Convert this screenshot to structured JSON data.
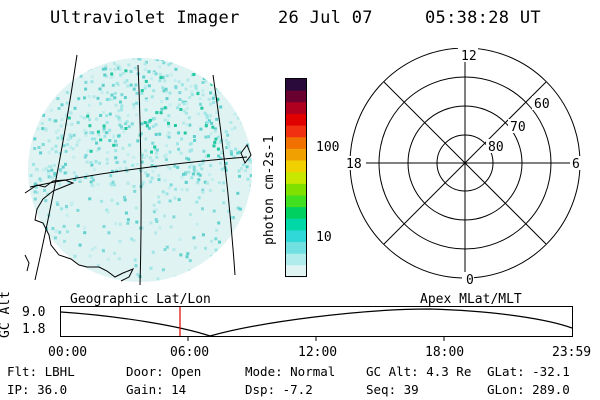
{
  "header": {
    "title": "Ultraviolet Imager",
    "date": "26 Jul 07",
    "time": "05:38:28 UT"
  },
  "colorbar": {
    "unit_label": "photon cm-2s-1",
    "ticks": [
      "100",
      "10"
    ],
    "colors": [
      "#2a0a3a",
      "#6a0030",
      "#b00020",
      "#e00000",
      "#f03010",
      "#f07000",
      "#f0a000",
      "#f0d000",
      "#c8e800",
      "#80e000",
      "#40e020",
      "#00d060",
      "#00d8a8",
      "#30d8d8",
      "#70e0e0",
      "#b0ecec",
      "#e0f4f4"
    ]
  },
  "polar_plot": {
    "labels": {
      "top": "12",
      "bottom": "0",
      "left": "18",
      "right": "6",
      "ring1": "60",
      "ring2": "70",
      "ring3": "80"
    }
  },
  "timeline": {
    "left_title": "Geographic Lat/Lon",
    "right_title": "Apex MLat/MLT",
    "axis_label": "GC Alt",
    "y_ticks": [
      "9.0",
      "1.8"
    ],
    "x_ticks": [
      "00:00",
      "06:00",
      "12:00",
      "18:00",
      "23:59"
    ],
    "current_marker": "05:38"
  },
  "info": {
    "flt": "Flt: LBHL",
    "ip": "IP: 36.0",
    "door": "Door: Open",
    "gain": "Gain: 14",
    "mode": "Mode: Normal",
    "dsp": "Dsp:    -7.2",
    "gc_alt": "GC Alt: 4.3 Re",
    "seq": "Seq: 39",
    "glat": "GLat: -32.1",
    "glon": "GLon: 289.0"
  }
}
